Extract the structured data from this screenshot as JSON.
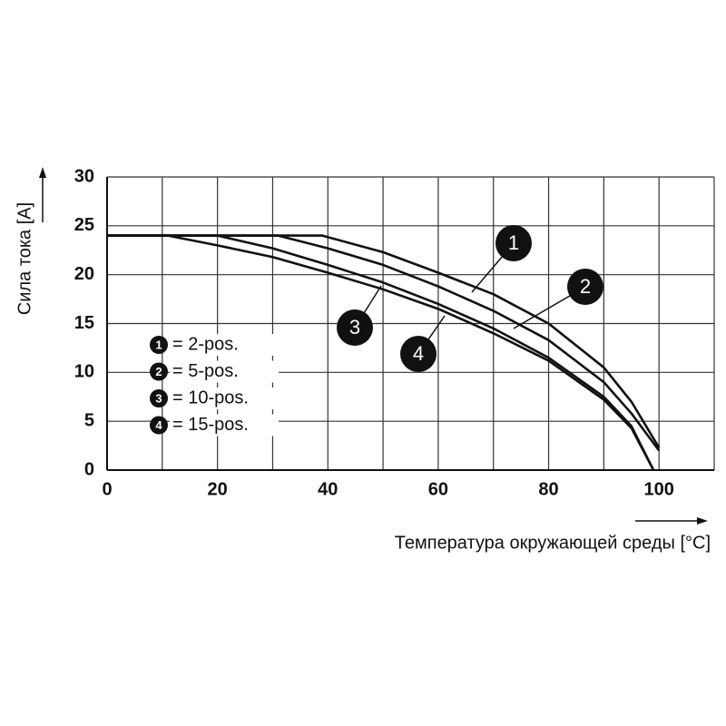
{
  "chart_data": {
    "type": "line",
    "y_label": "Сила тока [A]",
    "x_label": "Температура окружающей среды [°C]",
    "xlim": [
      0,
      110
    ],
    "ylim": [
      0,
      30
    ],
    "xticks": [
      0,
      20,
      40,
      60,
      80,
      100
    ],
    "yticks": [
      0,
      5,
      10,
      15,
      20,
      25,
      30
    ],
    "grid": true,
    "series": [
      {
        "name": "= 2-pos.",
        "label": "1",
        "color": "#111111",
        "x": [
          0,
          39,
          50,
          60,
          70,
          80,
          90,
          95,
          100
        ],
        "values": [
          24,
          24,
          22.3,
          20.2,
          18,
          15,
          10.5,
          7,
          2.3
        ]
      },
      {
        "name": "= 5-pos.",
        "label": "2",
        "color": "#111111",
        "x": [
          0,
          31,
          40,
          50,
          60,
          70,
          80,
          90,
          95,
          100
        ],
        "values": [
          24,
          24,
          22.7,
          21,
          18.8,
          16.3,
          13.3,
          9,
          5.8,
          2
        ]
      },
      {
        "name": "= 10-pos.",
        "label": "3",
        "color": "#111111",
        "x": [
          0,
          20,
          30,
          40,
          50,
          60,
          70,
          80,
          90,
          95,
          99
        ],
        "values": [
          24,
          24,
          22.7,
          21,
          19.2,
          17,
          14.5,
          11.5,
          7.5,
          4.5,
          0
        ]
      },
      {
        "name": "= 15-pos.",
        "label": "4",
        "color": "#111111",
        "x": [
          0,
          11,
          20,
          30,
          40,
          50,
          60,
          70,
          80,
          90,
          95,
          99
        ],
        "values": [
          24,
          24,
          23,
          21.8,
          20.2,
          18.5,
          16.5,
          14,
          11.2,
          7.2,
          4.3,
          0
        ]
      }
    ]
  }
}
